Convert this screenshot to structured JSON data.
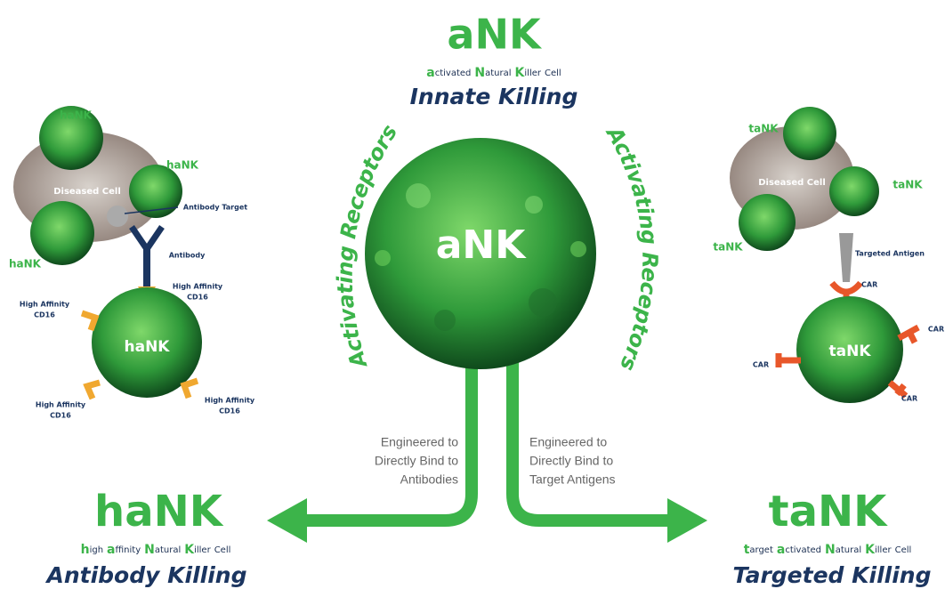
{
  "title": "aNK",
  "subtitle_words": [
    "activated",
    "Natural",
    "Killer",
    "Cell"
  ],
  "tagline": "Innate Killing",
  "center_cell": "aNK",
  "receptor_labels": [
    "Activating Receptors",
    "Activating Receptors"
  ],
  "left_branch": {
    "note_lines": [
      "Engineered to",
      "Directly Bind to",
      "Antibodies"
    ],
    "title": "haNK",
    "subtitle_words": [
      "high",
      "affinity",
      "Natural",
      "Killer",
      "Cell"
    ],
    "tagline": "Antibody Killing"
  },
  "right_branch": {
    "note_lines": [
      "Engineered to",
      "Directly Bind to",
      "Target Antigens"
    ],
    "title": "taNK",
    "subtitle_words": [
      "target",
      "activated",
      "Natural",
      "Killer",
      "Cell"
    ],
    "tagline": "Targeted Killing"
  },
  "left_illustration": {
    "cell_labels": [
      "haNK",
      "haNK",
      "haNK"
    ],
    "diseased_cell": "Diseased Cell",
    "antibody_target": "Antibody Target",
    "antibody": "Antibody",
    "cd16_labels": [
      [
        "High Affinity",
        "CD16"
      ],
      [
        "High Affinity",
        "CD16"
      ],
      [
        "High Affinity",
        "CD16"
      ],
      [
        "High Affinity",
        "CD16"
      ]
    ],
    "center_cell": "haNK"
  },
  "right_illustration": {
    "cell_labels": [
      "taNK",
      "taNK",
      "taNK"
    ],
    "diseased_cell": "Diseased Cell",
    "targeted_antigen": "Targeted Antigen",
    "car_labels": [
      "CAR",
      "CAR",
      "CAR",
      "CAR"
    ],
    "center_cell": "taNK"
  }
}
